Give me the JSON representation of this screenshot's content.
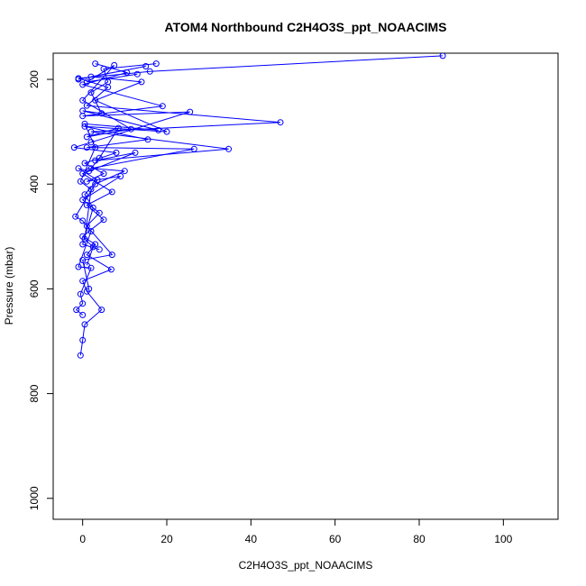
{
  "chart_data": {
    "type": "line",
    "title": "ATOM4 Northbound C2H4O3S_ppt_NOAACIMS",
    "xlabel": "C2H4O3S_ppt_NOAACIMS",
    "ylabel": "Pressure (mbar)",
    "xlim": [
      -7,
      113
    ],
    "ylim": [
      1040,
      150
    ],
    "y_reversed": true,
    "x_ticks": [
      0,
      20,
      40,
      60,
      80,
      100
    ],
    "y_ticks": [
      200,
      400,
      600,
      800,
      1000
    ],
    "color": "#0000ff",
    "marker": "open-circle",
    "grid": false,
    "series": [
      {
        "points": [
          [
            85.6,
            155
          ],
          [
            16,
            185
          ],
          [
            -1,
            198
          ],
          [
            6,
            215
          ],
          [
            1,
            250
          ],
          [
            47,
            282
          ],
          [
            2,
            300
          ],
          [
            34.7,
            333
          ],
          [
            3,
            355
          ],
          [
            12.5,
            340
          ],
          [
            0,
            380
          ],
          [
            7,
            415
          ],
          [
            1,
            440
          ],
          [
            5,
            468
          ],
          [
            0,
            500
          ],
          [
            3,
            515
          ],
          [
            1,
            535
          ],
          [
            6.8,
            563
          ],
          [
            0,
            585
          ],
          [
            1,
            605
          ],
          [
            4.5,
            640
          ],
          [
            0.5,
            668
          ],
          [
            0,
            698
          ],
          [
            -0.5,
            727
          ]
        ]
      },
      {
        "points": [
          [
            -1,
            200
          ],
          [
            15,
            175
          ],
          [
            2,
            195
          ],
          [
            14,
            205
          ],
          [
            3,
            240
          ],
          [
            20,
            300
          ],
          [
            0.5,
            290
          ],
          [
            15.5,
            315
          ],
          [
            1,
            330
          ],
          [
            26.5,
            333
          ],
          [
            2,
            370
          ],
          [
            10,
            375
          ],
          [
            3,
            400
          ],
          [
            -1.7,
            462
          ],
          [
            0,
            470
          ],
          [
            2,
            490
          ],
          [
            -1,
            558
          ],
          [
            2,
            560
          ],
          [
            -0.5,
            610
          ],
          [
            0,
            628
          ],
          [
            -1.5,
            640
          ],
          [
            0,
            650
          ]
        ]
      },
      {
        "points": [
          [
            3,
            170
          ],
          [
            10.5,
            187
          ],
          [
            0,
            210
          ],
          [
            19,
            251
          ],
          [
            0,
            270
          ],
          [
            25.5,
            262
          ],
          [
            2,
            320
          ],
          [
            -2,
            330
          ],
          [
            8,
            340
          ],
          [
            0.5,
            360
          ],
          [
            5,
            380
          ],
          [
            1,
            395
          ],
          [
            9,
            385
          ],
          [
            0,
            430
          ],
          [
            4,
            455
          ],
          [
            1,
            480
          ],
          [
            7,
            535
          ],
          [
            0,
            545
          ],
          [
            1.5,
            600
          ]
        ]
      },
      {
        "points": [
          [
            13,
            190
          ],
          [
            1,
            205
          ],
          [
            7.5,
            173
          ],
          [
            0,
            240
          ],
          [
            11.5,
            295
          ],
          [
            1,
            310
          ],
          [
            8.5,
            293
          ],
          [
            4,
            350
          ],
          [
            1.5,
            375
          ],
          [
            -1,
            370
          ],
          [
            3.5,
            392
          ],
          [
            0.5,
            420
          ],
          [
            2.5,
            445
          ],
          [
            0,
            515
          ],
          [
            4,
            525
          ]
        ]
      },
      {
        "points": [
          [
            17.5,
            170
          ],
          [
            5,
            180
          ],
          [
            6,
            205
          ],
          [
            2,
            225
          ],
          [
            4.5,
            265
          ],
          [
            0,
            260
          ],
          [
            18,
            297
          ],
          [
            0.5,
            285
          ],
          [
            3,
            330
          ],
          [
            -0.5,
            395
          ],
          [
            2,
            410
          ],
          [
            0.5,
            505
          ],
          [
            2.5,
            520
          ],
          [
            1,
            555
          ]
        ]
      }
    ]
  }
}
